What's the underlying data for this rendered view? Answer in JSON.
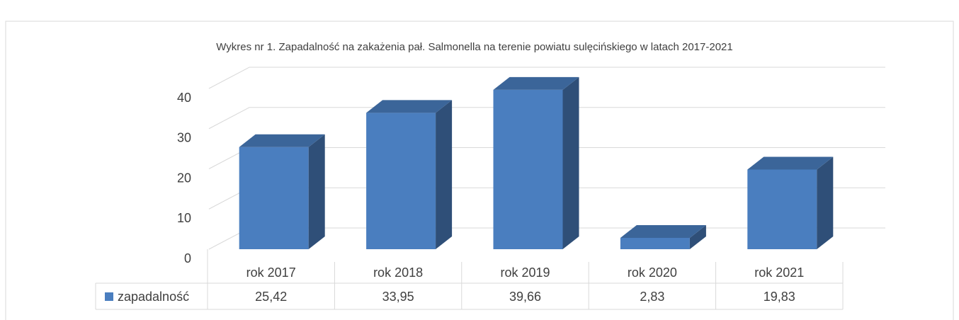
{
  "chart_data": {
    "type": "bar",
    "title": "Wykres nr 1. Zapadalność na zakażenia pał. Salmonella na terenie powiatu sulęcińskiego w latach 2017-2021",
    "categories": [
      "rok 2017",
      "rok 2018",
      "rok 2019",
      "rok 2020",
      "rok 2021"
    ],
    "series": [
      {
        "name": "zapadalność",
        "color": "#4a7ebf",
        "values": [
          25.42,
          33.95,
          39.66,
          2.83,
          19.83
        ],
        "value_labels": [
          "25,42",
          "33,95",
          "39,66",
          "2,83",
          "19,83"
        ]
      }
    ],
    "ylim": [
      0,
      40
    ],
    "yticks": [
      0,
      10,
      20,
      30,
      40
    ],
    "grid": true
  }
}
